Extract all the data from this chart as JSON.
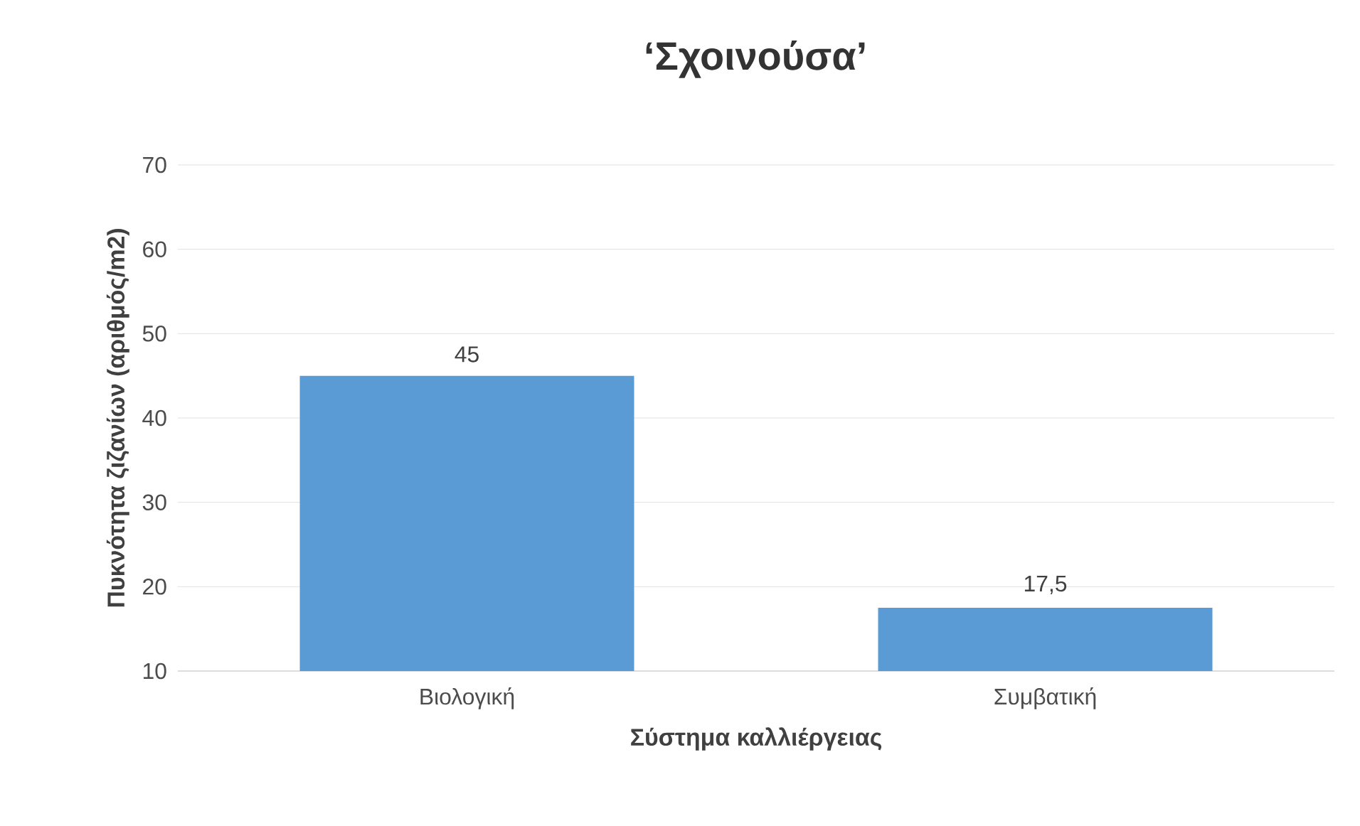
{
  "chart_data": {
    "type": "bar",
    "title": "‘Σχοινούσα’",
    "xlabel": "Σύστημα καλλιέργειας",
    "ylabel": "Πυκνότητα ζιζανίων (αριθμός/m2)",
    "categories": [
      "Βιολογική",
      "Συμβατική"
    ],
    "values": [
      45,
      17.5
    ],
    "color": "#5b9bd5",
    "value_labels": [
      "45",
      "17,5"
    ],
    "ylim": [
      10,
      70
    ],
    "yticks": [
      10,
      20,
      30,
      40,
      50,
      60,
      70
    ],
    "grid": "y"
  }
}
